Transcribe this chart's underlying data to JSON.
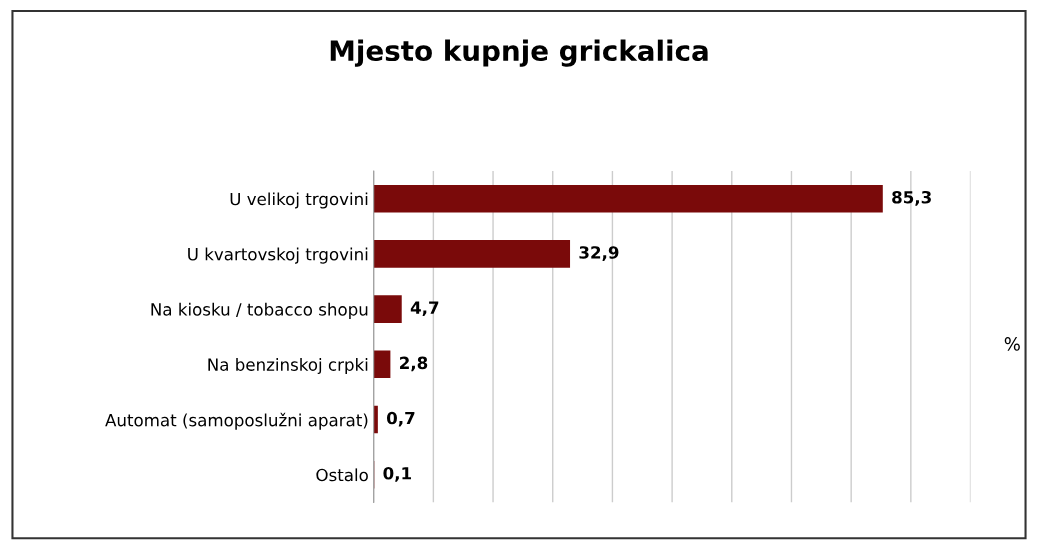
{
  "chart_data": {
    "type": "bar",
    "orientation": "horizontal",
    "title": "Mjesto kupnje grickalica",
    "xlabel": "%",
    "categories": [
      "U velikoj trgovini",
      "U kvartovskoj trgovini",
      "Na kiosku / tobacco shopu",
      "Na benzinskoj crpki",
      "Automat (samoposlužni aparat)",
      "Ostalo"
    ],
    "values": [
      85.3,
      32.9,
      4.7,
      2.8,
      0.7,
      0.1
    ],
    "value_labels": [
      "85,3",
      "32,9",
      "4,7",
      "2,8",
      "0,7",
      "0,1"
    ],
    "color": "#7a0a0a",
    "xlim": [
      0,
      100
    ],
    "xticks": [
      {
        "value": 0,
        "label": null
      },
      {
        "value": 10,
        "label": null
      },
      {
        "value": 20,
        "label": null
      },
      {
        "value": 30,
        "label": null
      },
      {
        "value": 40,
        "label": null
      },
      {
        "value": 50,
        "label": null
      },
      {
        "value": 60,
        "label": null
      },
      {
        "value": 70,
        "label": null
      },
      {
        "value": 80,
        "label": null
      },
      {
        "value": 90,
        "label": null
      },
      {
        "value": 100,
        "label": null
      }
    ],
    "grid": "x",
    "tick_labels": "y"
  }
}
